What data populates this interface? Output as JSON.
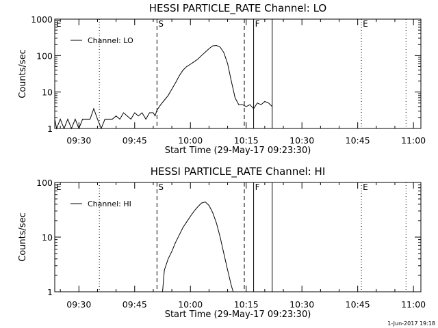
{
  "chart_data": [
    {
      "type": "line",
      "title": "HESSI PARTICLE_RATE Channel: LO",
      "xlabel": "Start Time (29-May-17 09:23:30)",
      "ylabel": "Counts/sec",
      "y_scale": "log",
      "ylim": [
        1,
        1000
      ],
      "xlim": [
        "09:23:30",
        "11:02:00"
      ],
      "x_ticks": [
        "09:30",
        "09:45",
        "10:00",
        "10:15",
        "10:30",
        "10:45",
        "11:00"
      ],
      "y_ticks": [
        "1",
        "10",
        "100",
        "1000"
      ],
      "legend": "top-left",
      "series": [
        {
          "name": "Channel: LO",
          "color": "#000000",
          "x": [
            "09:23:30",
            "09:24:00",
            "09:25:00",
            "09:26:00",
            "09:27:00",
            "09:28:00",
            "09:29:00",
            "09:30:00",
            "09:31:00",
            "09:32:00",
            "09:33:00",
            "09:34:00",
            "09:35:00",
            "09:36:00",
            "09:37:00",
            "09:38:00",
            "09:39:00",
            "09:40:00",
            "09:41:00",
            "09:42:00",
            "09:43:00",
            "09:44:00",
            "09:45:00",
            "09:46:00",
            "09:47:00",
            "09:48:00",
            "09:49:00",
            "09:50:00",
            "09:50:30",
            "09:51:00",
            "09:52:00",
            "09:53:00",
            "09:54:00",
            "09:55:00",
            "09:56:00",
            "09:57:00",
            "09:58:00",
            "09:59:00",
            "10:00:00",
            "10:01:00",
            "10:02:00",
            "10:03:00",
            "10:04:00",
            "10:05:00",
            "10:06:00",
            "10:07:00",
            "10:08:00",
            "10:09:00",
            "10:10:00",
            "10:11:00",
            "10:12:00",
            "10:13:00",
            "10:14:00",
            "10:15:00",
            "10:16:00",
            "10:17:00",
            "10:18:00",
            "10:19:00",
            "10:20:00",
            "10:21:00",
            "10:22:00"
          ],
          "values": [
            1.8,
            1.0,
            1.8,
            1.0,
            1.8,
            1.0,
            1.8,
            1.0,
            1.8,
            1.8,
            1.8,
            3.5,
            1.8,
            1.0,
            1.8,
            1.8,
            1.8,
            2.2,
            1.8,
            2.7,
            2.2,
            1.8,
            2.7,
            2.2,
            2.7,
            1.8,
            2.7,
            2.7,
            2.2,
            3.2,
            4.5,
            6,
            8,
            12,
            18,
            28,
            40,
            50,
            58,
            68,
            80,
            100,
            125,
            155,
            185,
            190,
            170,
            120,
            60,
            20,
            7,
            4.5,
            4.5,
            4.0,
            4.5,
            3.5,
            5.0,
            4.5,
            5.5,
            5.0,
            4.0
          ]
        }
      ],
      "markers": [
        {
          "label": "E",
          "time": "09:23:30",
          "style": "dotted"
        },
        {
          "label": "",
          "time": "09:35:30",
          "style": "dotted"
        },
        {
          "label": "S",
          "time": "09:51:00",
          "style": "dashed"
        },
        {
          "label": "",
          "time": "10:14:30",
          "style": "dashed"
        },
        {
          "label": "F",
          "time": "10:17:00",
          "style": "solid"
        },
        {
          "label": "",
          "time": "10:22:00",
          "style": "solid"
        },
        {
          "label": "E",
          "time": "10:46:00",
          "style": "dotted"
        },
        {
          "label": "",
          "time": "10:58:00",
          "style": "dotted"
        }
      ]
    },
    {
      "type": "line",
      "title": "HESSI PARTICLE_RATE Channel: HI",
      "xlabel": "Start Time (29-May-17 09:23:30)",
      "ylabel": "Counts/sec",
      "y_scale": "log",
      "ylim": [
        1,
        100
      ],
      "xlim": [
        "09:23:30",
        "11:02:00"
      ],
      "x_ticks": [
        "09:30",
        "09:45",
        "10:00",
        "10:15",
        "10:30",
        "10:45",
        "11:00"
      ],
      "y_ticks": [
        "1",
        "10",
        "100"
      ],
      "legend": "top-left",
      "series": [
        {
          "name": "Channel: HI",
          "color": "#000000",
          "x": [
            "09:52:30",
            "09:53:00",
            "09:54:00",
            "09:55:00",
            "09:56:00",
            "09:57:00",
            "09:58:00",
            "09:59:00",
            "10:00:00",
            "10:01:00",
            "10:02:00",
            "10:03:00",
            "10:04:00",
            "10:05:00",
            "10:06:00",
            "10:07:00",
            "10:08:00",
            "10:09:00",
            "10:10:00",
            "10:11:00",
            "10:11:30"
          ],
          "values": [
            1.0,
            2.5,
            4,
            5.5,
            8,
            11,
            15,
            19,
            24,
            30,
            36,
            42,
            44,
            38,
            28,
            18,
            10,
            5,
            2.5,
            1.3,
            1.0
          ]
        }
      ],
      "markers": [
        {
          "label": "E",
          "time": "09:23:30",
          "style": "dotted"
        },
        {
          "label": "",
          "time": "09:35:30",
          "style": "dotted"
        },
        {
          "label": "S",
          "time": "09:51:00",
          "style": "dashed"
        },
        {
          "label": "",
          "time": "10:14:30",
          "style": "dashed"
        },
        {
          "label": "F",
          "time": "10:17:00",
          "style": "solid"
        },
        {
          "label": "",
          "time": "10:22:00",
          "style": "solid"
        },
        {
          "label": "E",
          "time": "10:46:00",
          "style": "dotted"
        },
        {
          "label": "",
          "time": "10:58:00",
          "style": "dotted"
        }
      ]
    }
  ],
  "timestamp": "1-Jun-2017 19:18"
}
